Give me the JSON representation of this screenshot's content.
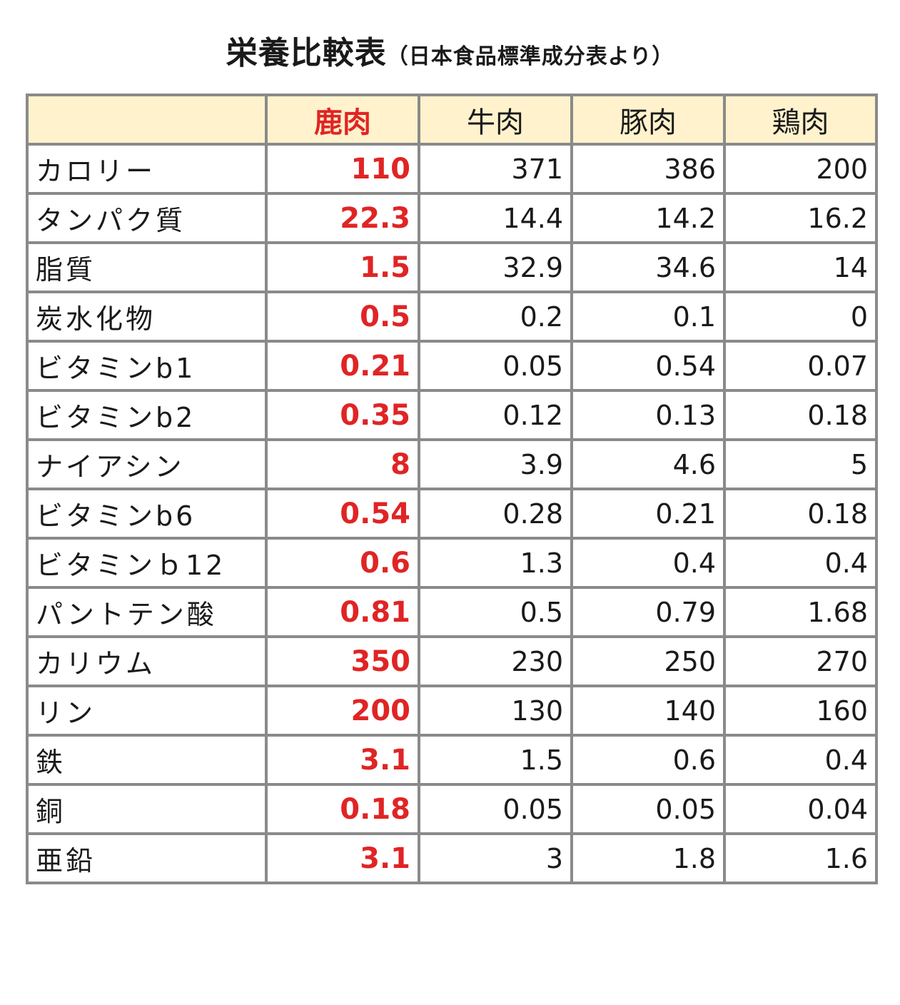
{
  "title": {
    "main": "栄養比較表",
    "sub": "（日本食品標準成分表より）"
  },
  "table": {
    "headers": [
      "",
      "鹿肉",
      "牛肉",
      "豚肉",
      "鶏肉"
    ],
    "rows": [
      {
        "label": "カロリー",
        "values": [
          "110",
          "371",
          "386",
          "200"
        ]
      },
      {
        "label": "タンパク質",
        "values": [
          "22.3",
          "14.4",
          "14.2",
          "16.2"
        ]
      },
      {
        "label": "脂質",
        "values": [
          "1.5",
          "32.9",
          "34.6",
          "14"
        ]
      },
      {
        "label": "炭水化物",
        "values": [
          "0.5",
          "0.2",
          "0.1",
          "0"
        ]
      },
      {
        "label": "ビタミンb1",
        "values": [
          "0.21",
          "0.05",
          "0.54",
          "0.07"
        ]
      },
      {
        "label": "ビタミンb2",
        "values": [
          "0.35",
          "0.12",
          "0.13",
          "0.18"
        ]
      },
      {
        "label": "ナイアシン",
        "values": [
          "8",
          "3.9",
          "4.6",
          "5"
        ]
      },
      {
        "label": "ビタミンb6",
        "values": [
          "0.54",
          "0.28",
          "0.21",
          "0.18"
        ]
      },
      {
        "label": "ビタミンｂ12",
        "values": [
          "0.6",
          "1.3",
          "0.4",
          "0.4"
        ]
      },
      {
        "label": "パントテン酸",
        "values": [
          "0.81",
          "0.5",
          "0.79",
          "1.68"
        ]
      },
      {
        "label": "カリウム",
        "values": [
          "350",
          "230",
          "250",
          "270"
        ]
      },
      {
        "label": "リン",
        "values": [
          "200",
          "130",
          "140",
          "160"
        ]
      },
      {
        "label": "鉄",
        "values": [
          "3.1",
          "1.5",
          "0.6",
          "0.4"
        ]
      },
      {
        "label": "銅",
        "values": [
          "0.18",
          "0.05",
          "0.05",
          "0.04"
        ]
      },
      {
        "label": "亜鉛",
        "values": [
          "3.1",
          "3",
          "1.8",
          "1.6"
        ]
      }
    ]
  },
  "colors": {
    "highlight": "#e02424",
    "header_background": "#fff2cc",
    "border": "#8a8a8a"
  }
}
